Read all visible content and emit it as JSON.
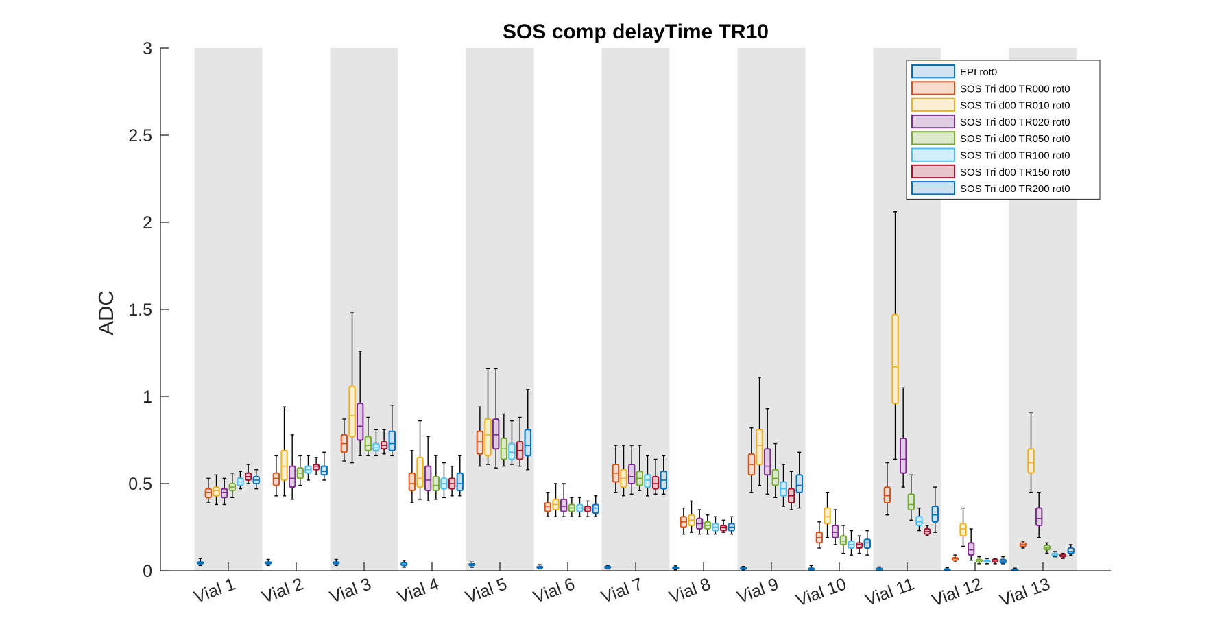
{
  "chart_data": {
    "type": "box",
    "title": "SOS comp delayTime TR10",
    "xlabel": "",
    "ylabel": "ADC",
    "ylim": [
      0,
      3
    ],
    "yticks": [
      "0",
      "0.5",
      "1",
      "1.5",
      "2",
      "2.5",
      "3"
    ],
    "ytick_values": [
      0,
      0.5,
      1,
      1.5,
      2,
      2.5,
      3
    ],
    "categories": [
      "Vial 1",
      "Vial 2",
      "Vial 3",
      "Vial 4",
      "Vial 5",
      "Vial 6",
      "Vial 7",
      "Vial 8",
      "Vial 9",
      "Vial 10",
      "Vial 11",
      "Vial 12",
      "Vial 13"
    ],
    "shaded_categories": [
      0,
      2,
      4,
      6,
      8,
      10,
      12
    ],
    "legend_position": "top-right",
    "series": [
      {
        "name": "EPI rot0",
        "color": "#0072BD",
        "fill": "#cfe3f2",
        "boxes": [
          [
            0.03,
            0.04,
            0.045,
            0.05,
            0.07
          ],
          [
            0.03,
            0.04,
            0.045,
            0.05,
            0.065
          ],
          [
            0.03,
            0.04,
            0.045,
            0.05,
            0.065
          ],
          [
            0.02,
            0.03,
            0.035,
            0.045,
            0.06
          ],
          [
            0.02,
            0.03,
            0.035,
            0.04,
            0.05
          ],
          [
            0.01,
            0.015,
            0.02,
            0.025,
            0.035
          ],
          [
            0.01,
            0.015,
            0.02,
            0.025,
            0.03
          ],
          [
            0.005,
            0.012,
            0.015,
            0.02,
            0.028
          ],
          [
            0.005,
            0.01,
            0.013,
            0.018,
            0.025
          ],
          [
            0.0,
            0.005,
            0.008,
            0.015,
            0.03
          ],
          [
            0.0,
            0.005,
            0.01,
            0.015,
            0.022
          ],
          [
            0.0,
            0.003,
            0.006,
            0.01,
            0.018
          ],
          [
            0.0,
            0.002,
            0.004,
            0.008,
            0.015
          ]
        ]
      },
      {
        "name": "SOS Tri d00 TR000 rot0",
        "color": "#D95319",
        "fill": "#f7dbcd",
        "boxes": [
          [
            0.39,
            0.42,
            0.45,
            0.47,
            0.53
          ],
          [
            0.43,
            0.49,
            0.53,
            0.56,
            0.66
          ],
          [
            0.63,
            0.68,
            0.73,
            0.78,
            0.87
          ],
          [
            0.39,
            0.46,
            0.5,
            0.56,
            0.69
          ],
          [
            0.6,
            0.67,
            0.74,
            0.8,
            0.94
          ],
          [
            0.31,
            0.34,
            0.37,
            0.39,
            0.45
          ],
          [
            0.45,
            0.51,
            0.56,
            0.61,
            0.72
          ],
          [
            0.21,
            0.25,
            0.28,
            0.31,
            0.36
          ],
          [
            0.45,
            0.55,
            0.61,
            0.67,
            0.82
          ],
          [
            0.13,
            0.16,
            0.19,
            0.22,
            0.28
          ],
          [
            0.32,
            0.39,
            0.43,
            0.48,
            0.62
          ],
          [
            0.05,
            0.06,
            0.07,
            0.075,
            0.09
          ],
          [
            0.13,
            0.14,
            0.15,
            0.16,
            0.17
          ]
        ]
      },
      {
        "name": "SOS Tri d00 TR010 rot0",
        "color": "#EDB120",
        "fill": "#fcefd1",
        "boxes": [
          [
            0.38,
            0.43,
            0.46,
            0.48,
            0.55
          ],
          [
            0.43,
            0.52,
            0.6,
            0.69,
            0.94
          ],
          [
            0.62,
            0.77,
            0.89,
            1.06,
            1.48
          ],
          [
            0.41,
            0.48,
            0.53,
            0.65,
            0.86
          ],
          [
            0.61,
            0.66,
            0.78,
            0.87,
            1.16
          ],
          [
            0.31,
            0.35,
            0.38,
            0.41,
            0.5
          ],
          [
            0.43,
            0.48,
            0.53,
            0.58,
            0.72
          ],
          [
            0.22,
            0.26,
            0.29,
            0.32,
            0.4
          ],
          [
            0.49,
            0.61,
            0.72,
            0.81,
            1.11
          ],
          [
            0.19,
            0.27,
            0.31,
            0.36,
            0.45
          ],
          [
            0.64,
            0.96,
            1.17,
            1.47,
            2.06
          ],
          [
            0.14,
            0.2,
            0.24,
            0.27,
            0.36
          ],
          [
            0.45,
            0.56,
            0.62,
            0.7,
            0.91
          ]
        ]
      },
      {
        "name": "SOS Tri d00 TR020 rot0",
        "color": "#7E2F8E",
        "fill": "#e0cde4",
        "boxes": [
          [
            0.38,
            0.42,
            0.45,
            0.47,
            0.53
          ],
          [
            0.41,
            0.48,
            0.53,
            0.6,
            0.78
          ],
          [
            0.66,
            0.75,
            0.83,
            0.96,
            1.26
          ],
          [
            0.4,
            0.46,
            0.52,
            0.6,
            0.77
          ],
          [
            0.59,
            0.7,
            0.78,
            0.87,
            1.16
          ],
          [
            0.31,
            0.34,
            0.37,
            0.41,
            0.5
          ],
          [
            0.44,
            0.5,
            0.54,
            0.61,
            0.72
          ],
          [
            0.21,
            0.24,
            0.27,
            0.3,
            0.35
          ],
          [
            0.44,
            0.55,
            0.6,
            0.7,
            0.93
          ],
          [
            0.15,
            0.19,
            0.22,
            0.26,
            0.35
          ],
          [
            0.48,
            0.56,
            0.64,
            0.76,
            1.05
          ],
          [
            0.06,
            0.09,
            0.12,
            0.16,
            0.24
          ],
          [
            0.19,
            0.26,
            0.3,
            0.36,
            0.45
          ]
        ]
      },
      {
        "name": "SOS Tri d00 TR050 rot0",
        "color": "#77AC30",
        "fill": "#dde9cb",
        "boxes": [
          [
            0.42,
            0.46,
            0.48,
            0.5,
            0.56
          ],
          [
            0.49,
            0.53,
            0.56,
            0.59,
            0.66
          ],
          [
            0.66,
            0.69,
            0.72,
            0.77,
            0.88
          ],
          [
            0.41,
            0.46,
            0.49,
            0.54,
            0.66
          ],
          [
            0.6,
            0.64,
            0.7,
            0.76,
            0.9
          ],
          [
            0.31,
            0.34,
            0.36,
            0.38,
            0.42
          ],
          [
            0.46,
            0.49,
            0.53,
            0.57,
            0.72
          ],
          [
            0.21,
            0.24,
            0.26,
            0.28,
            0.32
          ],
          [
            0.42,
            0.49,
            0.53,
            0.58,
            0.73
          ],
          [
            0.1,
            0.15,
            0.17,
            0.2,
            0.26
          ],
          [
            0.29,
            0.35,
            0.38,
            0.44,
            0.55
          ],
          [
            0.04,
            0.05,
            0.06,
            0.065,
            0.08
          ],
          [
            0.1,
            0.12,
            0.13,
            0.145,
            0.16
          ]
        ]
      },
      {
        "name": "SOS Tri d00 TR100 rot0",
        "color": "#4DBEEE",
        "fill": "#d3eefb",
        "boxes": [
          [
            0.47,
            0.49,
            0.51,
            0.53,
            0.57
          ],
          [
            0.52,
            0.56,
            0.58,
            0.6,
            0.66
          ],
          [
            0.66,
            0.69,
            0.71,
            0.73,
            0.81
          ],
          [
            0.42,
            0.47,
            0.5,
            0.53,
            0.62
          ],
          [
            0.61,
            0.64,
            0.68,
            0.73,
            0.86
          ],
          [
            0.31,
            0.34,
            0.36,
            0.38,
            0.42
          ],
          [
            0.43,
            0.48,
            0.52,
            0.55,
            0.66
          ],
          [
            0.21,
            0.23,
            0.25,
            0.27,
            0.31
          ],
          [
            0.37,
            0.43,
            0.47,
            0.51,
            0.61
          ],
          [
            0.09,
            0.13,
            0.15,
            0.17,
            0.23
          ],
          [
            0.23,
            0.26,
            0.28,
            0.31,
            0.36
          ],
          [
            0.04,
            0.05,
            0.055,
            0.06,
            0.07
          ],
          [
            0.08,
            0.085,
            0.09,
            0.1,
            0.11
          ]
        ]
      },
      {
        "name": "SOS Tri d00 TR150 rot0",
        "color": "#A2142F",
        "fill": "#e8c5cb",
        "boxes": [
          [
            0.5,
            0.52,
            0.54,
            0.56,
            0.61
          ],
          [
            0.55,
            0.58,
            0.6,
            0.61,
            0.65
          ],
          [
            0.67,
            0.7,
            0.72,
            0.74,
            0.81
          ],
          [
            0.43,
            0.47,
            0.5,
            0.53,
            0.6
          ],
          [
            0.6,
            0.64,
            0.69,
            0.74,
            0.88
          ],
          [
            0.31,
            0.34,
            0.36,
            0.37,
            0.4
          ],
          [
            0.44,
            0.47,
            0.5,
            0.54,
            0.64
          ],
          [
            0.22,
            0.23,
            0.25,
            0.26,
            0.29
          ],
          [
            0.35,
            0.39,
            0.43,
            0.47,
            0.57
          ],
          [
            0.1,
            0.13,
            0.15,
            0.16,
            0.2
          ],
          [
            0.2,
            0.21,
            0.225,
            0.24,
            0.26
          ],
          [
            0.04,
            0.05,
            0.06,
            0.065,
            0.07
          ],
          [
            0.07,
            0.08,
            0.09,
            0.095,
            0.1
          ]
        ]
      },
      {
        "name": "SOS Tri d00 TR200 rot0",
        "color": "#0072BD",
        "fill": "#cce0f0",
        "boxes": [
          [
            0.47,
            0.5,
            0.52,
            0.54,
            0.58
          ],
          [
            0.52,
            0.55,
            0.57,
            0.6,
            0.68
          ],
          [
            0.66,
            0.69,
            0.73,
            0.8,
            0.95
          ],
          [
            0.43,
            0.46,
            0.5,
            0.56,
            0.66
          ],
          [
            0.58,
            0.66,
            0.72,
            0.81,
            1.04
          ],
          [
            0.31,
            0.33,
            0.36,
            0.38,
            0.43
          ],
          [
            0.44,
            0.47,
            0.52,
            0.57,
            0.66
          ],
          [
            0.21,
            0.23,
            0.25,
            0.27,
            0.31
          ],
          [
            0.36,
            0.45,
            0.49,
            0.55,
            0.68
          ],
          [
            0.09,
            0.13,
            0.16,
            0.18,
            0.23
          ],
          [
            0.22,
            0.28,
            0.32,
            0.37,
            0.48
          ],
          [
            0.04,
            0.045,
            0.055,
            0.065,
            0.08
          ],
          [
            0.09,
            0.1,
            0.11,
            0.13,
            0.15
          ]
        ]
      }
    ]
  }
}
